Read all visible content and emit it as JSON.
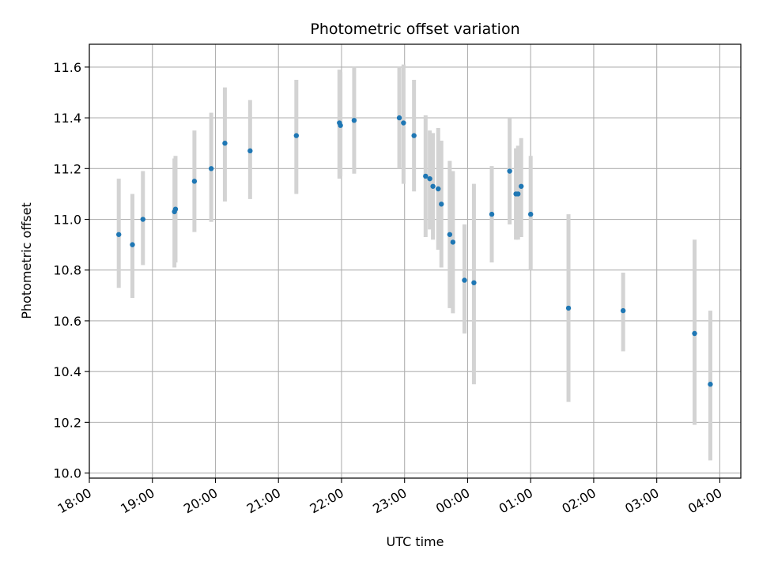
{
  "chart_data": {
    "type": "scatter",
    "title": "Photometric offset variation",
    "xlabel": "UTC time",
    "ylabel": "Photometric offset",
    "grid": true,
    "xlim": [
      "18:00",
      "04:20"
    ],
    "ylim": [
      9.98,
      11.69
    ],
    "x_ticks": [
      "18:00",
      "19:00",
      "20:00",
      "21:00",
      "22:00",
      "23:00",
      "00:00",
      "01:00",
      "02:00",
      "03:00",
      "04:00"
    ],
    "y_ticks": [
      "10.0",
      "10.2",
      "10.4",
      "10.6",
      "10.8",
      "11.0",
      "11.2",
      "11.4",
      "11.6"
    ],
    "colors": {
      "point": "#1f77b4",
      "errorbar": "#d3d3d3",
      "grid": "#b0b0b0"
    },
    "points": [
      {
        "x": "18:28",
        "y": 10.94,
        "lo": 10.73,
        "hi": 11.16
      },
      {
        "x": "18:41",
        "y": 10.9,
        "lo": 10.69,
        "hi": 11.1
      },
      {
        "x": "18:51",
        "y": 11.0,
        "lo": 10.82,
        "hi": 11.19
      },
      {
        "x": "19:21",
        "y": 11.03,
        "lo": 10.81,
        "hi": 11.24
      },
      {
        "x": "19:22",
        "y": 11.04,
        "lo": 10.83,
        "hi": 11.25
      },
      {
        "x": "19:40",
        "y": 11.15,
        "lo": 10.95,
        "hi": 11.35
      },
      {
        "x": "19:56",
        "y": 11.2,
        "lo": 10.99,
        "hi": 11.42
      },
      {
        "x": "20:09",
        "y": 11.3,
        "lo": 11.07,
        "hi": 11.52
      },
      {
        "x": "20:33",
        "y": 11.27,
        "lo": 11.08,
        "hi": 11.47
      },
      {
        "x": "21:17",
        "y": 11.33,
        "lo": 11.1,
        "hi": 11.55
      },
      {
        "x": "21:58",
        "y": 11.38,
        "lo": 11.16,
        "hi": 11.59
      },
      {
        "x": "21:59",
        "y": 11.37,
        "lo": 11.17,
        "hi": 11.58
      },
      {
        "x": "22:12",
        "y": 11.39,
        "lo": 11.18,
        "hi": 11.6
      },
      {
        "x": "22:55",
        "y": 11.4,
        "lo": 11.2,
        "hi": 11.6
      },
      {
        "x": "22:59",
        "y": 11.38,
        "lo": 11.14,
        "hi": 11.61
      },
      {
        "x": "23:09",
        "y": 11.33,
        "lo": 11.11,
        "hi": 11.55
      },
      {
        "x": "23:20",
        "y": 11.17,
        "lo": 10.93,
        "hi": 11.41
      },
      {
        "x": "23:24",
        "y": 11.16,
        "lo": 10.96,
        "hi": 11.35
      },
      {
        "x": "23:27",
        "y": 11.13,
        "lo": 10.92,
        "hi": 11.34
      },
      {
        "x": "23:32",
        "y": 11.12,
        "lo": 10.88,
        "hi": 11.36
      },
      {
        "x": "23:35",
        "y": 11.06,
        "lo": 10.81,
        "hi": 11.31
      },
      {
        "x": "23:43",
        "y": 10.94,
        "lo": 10.65,
        "hi": 11.23
      },
      {
        "x": "23:46",
        "y": 10.91,
        "lo": 10.63,
        "hi": 11.19
      },
      {
        "x": "23:57",
        "y": 10.76,
        "lo": 10.55,
        "hi": 10.98
      },
      {
        "x": "00:06",
        "y": 10.75,
        "lo": 10.35,
        "hi": 11.14
      },
      {
        "x": "00:23",
        "y": 11.02,
        "lo": 10.83,
        "hi": 11.21
      },
      {
        "x": "00:40",
        "y": 11.19,
        "lo": 10.98,
        "hi": 11.4
      },
      {
        "x": "00:46",
        "y": 11.1,
        "lo": 10.92,
        "hi": 11.28
      },
      {
        "x": "00:48",
        "y": 11.1,
        "lo": 10.92,
        "hi": 11.29
      },
      {
        "x": "00:51",
        "y": 11.13,
        "lo": 10.93,
        "hi": 11.32
      },
      {
        "x": "01:00",
        "y": 11.02,
        "lo": 10.8,
        "hi": 11.25
      },
      {
        "x": "01:36",
        "y": 10.65,
        "lo": 10.28,
        "hi": 11.02
      },
      {
        "x": "02:28",
        "y": 10.64,
        "lo": 10.48,
        "hi": 10.79
      },
      {
        "x": "03:36",
        "y": 10.55,
        "lo": 10.19,
        "hi": 10.92
      },
      {
        "x": "03:51",
        "y": 10.35,
        "lo": 10.05,
        "hi": 10.64
      }
    ]
  }
}
